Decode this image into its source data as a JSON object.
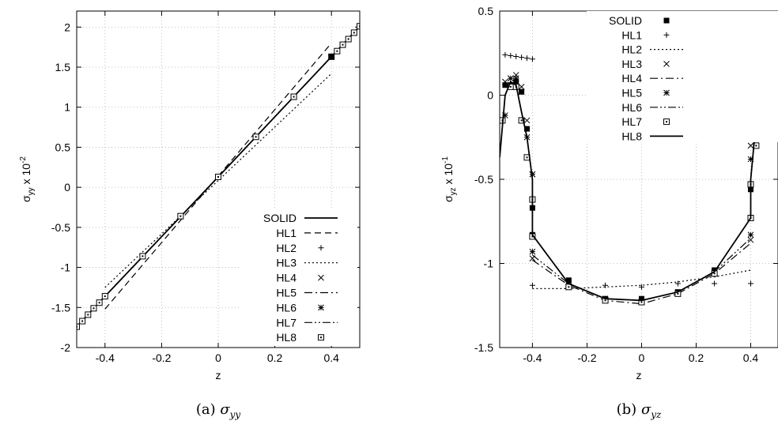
{
  "chart_data": [
    {
      "type": "line",
      "caption": "(a)  σ_yy",
      "caption_label": "(a)",
      "caption_symbol": "σ",
      "caption_sub": "yy",
      "xlabel": "z",
      "ylabel_main": "σ",
      "ylabel_sub": "yy",
      "ylabel_suffix": " x 10",
      "ylabel_exp": "-2",
      "xlim": [
        -0.5,
        0.5
      ],
      "ylim": [
        -2,
        2.2
      ],
      "xticks": [
        -0.4,
        -0.2,
        0,
        0.2,
        0.4
      ],
      "xtick_labels": [
        "-0.4",
        "-0.2",
        "0",
        "0.2",
        "0.4"
      ],
      "yticks": [
        -2,
        -1.5,
        -1,
        -0.5,
        0,
        0.5,
        1,
        1.5,
        2
      ],
      "ytick_labels": [
        "-2",
        "-1.5",
        "-1",
        "-0.5",
        "0",
        "0.5",
        "1",
        "1.5",
        "2"
      ],
      "grid": true,
      "legend_position": "bottom-right",
      "series": [
        {
          "name": "SOLID",
          "style": "solid",
          "x": [
            -0.5,
            -0.4,
            0,
            0.4,
            0.5
          ],
          "y": [
            -1.74,
            -1.36,
            0.13,
            1.63,
            2.01
          ]
        },
        {
          "name": "HL1",
          "style": "dash",
          "x": [
            -0.4,
            0.4
          ],
          "y": [
            -1.52,
            1.8
          ]
        },
        {
          "name": "HL2",
          "style": "plus",
          "x": [
            -0.5,
            -0.48,
            -0.46,
            -0.44,
            -0.42,
            -0.4,
            -0.267,
            -0.133,
            0,
            0.133,
            0.267,
            0.4,
            0.42,
            0.44,
            0.46,
            0.48,
            0.5
          ],
          "y": [
            -1.74,
            -1.67,
            -1.59,
            -1.51,
            -1.44,
            -1.36,
            -0.86,
            -0.36,
            0.13,
            0.63,
            1.13,
            1.63,
            1.7,
            1.78,
            1.85,
            1.93,
            2.01
          ]
        },
        {
          "name": "HL3",
          "style": "dot",
          "x": [
            -0.4,
            0.4
          ],
          "y": [
            -1.25,
            1.42
          ]
        },
        {
          "name": "HL4",
          "style": "cross",
          "x": [
            -0.5,
            -0.48,
            -0.46,
            -0.44,
            -0.42,
            -0.4,
            -0.267,
            -0.133,
            0,
            0.133,
            0.267,
            0.4,
            0.42,
            0.44,
            0.46,
            0.48,
            0.5
          ],
          "y": [
            -1.74,
            -1.67,
            -1.59,
            -1.51,
            -1.44,
            -1.36,
            -0.86,
            -0.36,
            0.13,
            0.63,
            1.13,
            1.63,
            1.7,
            1.78,
            1.85,
            1.93,
            2.01
          ]
        },
        {
          "name": "HL5",
          "style": "dashdot",
          "x": [
            -0.5,
            -0.4,
            0,
            0.4,
            0.5
          ],
          "y": [
            -1.74,
            -1.36,
            0.13,
            1.63,
            2.01
          ]
        },
        {
          "name": "HL6",
          "style": "star",
          "x": [
            -0.5,
            -0.48,
            -0.46,
            -0.44,
            -0.42,
            -0.4,
            -0.267,
            -0.133,
            0,
            0.133,
            0.267,
            0.4,
            0.42,
            0.44,
            0.46,
            0.48,
            0.5
          ],
          "y": [
            -1.74,
            -1.67,
            -1.59,
            -1.51,
            -1.44,
            -1.36,
            -0.86,
            -0.36,
            0.13,
            0.63,
            1.13,
            1.63,
            1.7,
            1.78,
            1.85,
            1.93,
            2.01
          ]
        },
        {
          "name": "HL7",
          "style": "dashdotdot",
          "x": [
            -0.5,
            -0.4,
            0,
            0.4,
            0.5
          ],
          "y": [
            -1.74,
            -1.36,
            0.13,
            1.63,
            2.01
          ]
        },
        {
          "name": "HL8",
          "style": "opensquare",
          "x": [
            -0.5,
            -0.48,
            -0.46,
            -0.44,
            -0.42,
            -0.4,
            -0.267,
            -0.133,
            0,
            0.133,
            0.267,
            0.4,
            0.42,
            0.44,
            0.46,
            0.48,
            0.5
          ],
          "y": [
            -1.74,
            -1.67,
            -1.59,
            -1.51,
            -1.44,
            -1.36,
            -0.86,
            -0.36,
            0.13,
            0.63,
            1.13,
            1.63,
            1.7,
            1.78,
            1.85,
            1.93,
            2.01
          ]
        }
      ],
      "extra_markers": [
        {
          "style": "filledsquare",
          "x": 0.4,
          "y": 1.63
        }
      ]
    },
    {
      "type": "line",
      "caption": "(b)  σ_yz",
      "caption_label": "(b)",
      "caption_symbol": "σ",
      "caption_sub": "yz",
      "xlabel": "z",
      "ylabel_main": "σ",
      "ylabel_sub": "yz",
      "ylabel_suffix": " x 10",
      "ylabel_exp": "-1",
      "xlim": [
        -0.52,
        0.5
      ],
      "ylim": [
        -1.5,
        0.5
      ],
      "xticks": [
        -0.4,
        -0.2,
        0,
        0.2,
        0.4
      ],
      "xtick_labels": [
        "-0.4",
        "-0.2",
        "0",
        "0.2",
        "0.4"
      ],
      "yticks": [
        -1.5,
        -1,
        -0.5,
        0,
        0.5
      ],
      "ytick_labels": [
        "-1.5",
        "-1",
        "-0.5",
        "0",
        "0.5"
      ],
      "grid": true,
      "legend_position": "top-right",
      "series": [
        {
          "name": "SOLID",
          "style": "filledsquare",
          "x": [
            -0.5,
            -0.48,
            -0.46,
            -0.44,
            -0.42,
            -0.4,
            -0.4,
            -0.267,
            -0.133,
            0,
            0.133,
            0.267,
            0.4,
            0.4,
            0.42,
            0.44,
            0.46
          ],
          "y": [
            0.06,
            0.06,
            0.08,
            0.02,
            -0.2,
            -0.67,
            -0.83,
            -1.1,
            -1.21,
            -1.21,
            -1.17,
            -1.04,
            -0.73,
            -0.56,
            -0.11,
            0.13,
            0.15
          ]
        },
        {
          "name": "HL1",
          "style": "plus",
          "x": [
            -0.5,
            -0.48,
            -0.46,
            -0.44,
            -0.42,
            -0.4,
            -0.4,
            -0.267,
            -0.133,
            0,
            0.133,
            0.267,
            0.4,
            0.4,
            0.42,
            0.44,
            0.46,
            0.48
          ],
          "y": [
            0.24,
            0.235,
            0.23,
            0.225,
            0.22,
            0.215,
            -1.13,
            -1.12,
            -1.13,
            -1.14,
            -1.12,
            -1.12,
            -1.12,
            0.265,
            0.27,
            0.275,
            0.28,
            0.285
          ]
        },
        {
          "name": "HL2",
          "style": "dot",
          "x": [
            -0.4,
            -0.267,
            -0.133,
            0,
            0.133,
            0.267,
            0.4
          ],
          "y": [
            -1.15,
            -1.15,
            -1.14,
            -1.13,
            -1.11,
            -1.08,
            -1.04
          ]
        },
        {
          "name": "HL3",
          "style": "cross",
          "x": [
            -0.5,
            -0.48,
            -0.46,
            -0.44,
            -0.42,
            -0.4,
            -0.4,
            -0.267,
            -0.133,
            0,
            0.133,
            0.267,
            0.4,
            0.4,
            0.42,
            0.44,
            0.46
          ],
          "y": [
            0.08,
            0.1,
            0.12,
            0.05,
            -0.15,
            -0.47,
            -0.97,
            -1.12,
            -1.21,
            -1.23,
            -1.18,
            -1.06,
            -0.86,
            -0.3,
            -0.07,
            0.13,
            0.14
          ]
        },
        {
          "name": "HL4",
          "style": "dashdot",
          "x": [
            -0.4,
            -0.267,
            -0.133,
            0,
            0.133,
            0.267,
            0.4
          ],
          "y": [
            -0.98,
            -1.13,
            -1.22,
            -1.24,
            -1.18,
            -1.06,
            -0.88
          ]
        },
        {
          "name": "HL5",
          "style": "star",
          "x": [
            -0.5,
            -0.48,
            -0.46,
            -0.44,
            -0.42,
            -0.4,
            -0.4,
            -0.267,
            -0.133,
            0,
            0.133,
            0.267,
            0.4,
            0.4,
            0.42,
            0.44,
            0.46
          ],
          "y": [
            -0.12,
            0.1,
            0.1,
            0.02,
            -0.25,
            -0.47,
            -0.93,
            -1.11,
            -1.21,
            -1.23,
            -1.17,
            -1.05,
            -0.83,
            -0.38,
            -0.2,
            0.1,
            0.14
          ]
        },
        {
          "name": "HL6",
          "style": "dashdotdot",
          "x": [
            -0.4,
            -0.267,
            -0.133,
            0,
            0.133,
            0.267,
            0.4
          ],
          "y": [
            -0.95,
            -1.12,
            -1.21,
            -1.22,
            -1.17,
            -1.05,
            -0.85
          ]
        },
        {
          "name": "HL7",
          "style": "opensquare",
          "x": [
            -0.51,
            -0.48,
            -0.46,
            -0.44,
            -0.42,
            -0.4,
            -0.4,
            -0.267,
            -0.133,
            0,
            0.133,
            0.267,
            0.4,
            0.4,
            0.42,
            0.44
          ],
          "y": [
            -0.15,
            0.05,
            0.05,
            -0.15,
            -0.37,
            -0.62,
            -0.84,
            -1.14,
            -1.22,
            -1.23,
            -1.18,
            -1.06,
            -0.73,
            -0.53,
            -0.3,
            0.1
          ]
        },
        {
          "name": "HL8",
          "style": "solid",
          "x": [
            -0.52,
            -0.5,
            -0.48,
            -0.46,
            -0.44,
            -0.42,
            -0.4,
            -0.4,
            -0.267,
            -0.133,
            0,
            0.133,
            0.267,
            0.4,
            0.4,
            0.42,
            0.44,
            0.46,
            0.5
          ],
          "y": [
            -0.37,
            0.0,
            0.08,
            0.06,
            -0.1,
            -0.25,
            -0.5,
            -0.83,
            -1.12,
            -1.21,
            -1.22,
            -1.17,
            -1.05,
            -0.73,
            -0.5,
            -0.15,
            0.08,
            0.1,
            0.06
          ]
        }
      ]
    }
  ]
}
